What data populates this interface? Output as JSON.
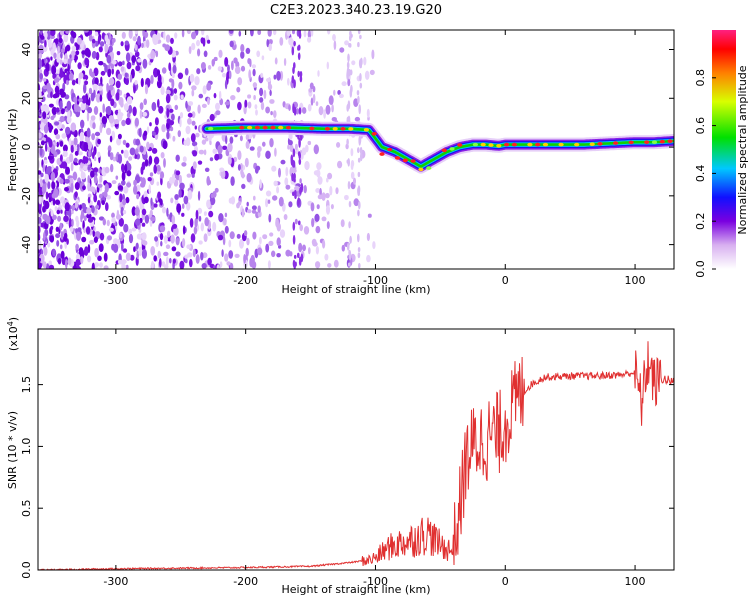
{
  "title": "C2E3.2023.340.23.19.G20",
  "colors": {
    "snr_line": "#e03030",
    "axis": "#000000",
    "background": "#ffffff"
  },
  "chart_data": [
    {
      "type": "heatmap",
      "xlabel": "Height of straight line (km)",
      "ylabel": "Frequency (Hz)",
      "xlim": [
        -360,
        130
      ],
      "ylim": [
        -50,
        48
      ],
      "xticks": [
        -300,
        -200,
        -100,
        0,
        100
      ],
      "yticks": [
        -40,
        -20,
        0,
        20,
        40
      ],
      "colorbar": {
        "label": "Normalized spectral amplitude",
        "range": [
          0.0,
          1.0
        ],
        "ticks": [
          "0.0",
          "0.2",
          "0.4",
          "0.6",
          "0.8"
        ],
        "tick_values": [
          0.0,
          0.2,
          0.4,
          0.6,
          0.8
        ]
      },
      "ridge_track": {
        "x": [
          -230,
          -200,
          -170,
          -140,
          -120,
          -105,
          -95,
          -85,
          -75,
          -65,
          -55,
          -45,
          -35,
          -25,
          -15,
          -5,
          0,
          20,
          40,
          60,
          80,
          100,
          115,
          130
        ],
        "y": [
          7.5,
          8,
          8,
          7.5,
          7.5,
          7,
          0,
          -2,
          -5,
          -8,
          -5,
          -2,
          0,
          1,
          1,
          0.5,
          1,
          1,
          1,
          1,
          1.5,
          2,
          2,
          2.5
        ]
      }
    },
    {
      "type": "line",
      "xlabel": "Height of straight line (km)",
      "ylabel": "SNR (10 * v/v)",
      "y_multiplier": "(x10",
      "y_multiplier_exp": "4",
      "y_multiplier_close": ")",
      "xlim": [
        -360,
        130
      ],
      "ylim": [
        0,
        1.95
      ],
      "xticks": [
        -300,
        -200,
        -100,
        0,
        100
      ],
      "yticks": [
        "0.0",
        "0.5",
        "1.0",
        "1.5"
      ],
      "ytick_values": [
        0.0,
        0.5,
        1.0,
        1.5
      ],
      "x": [
        -360,
        -300,
        -250,
        -200,
        -150,
        -120,
        -105,
        -100,
        -90,
        -80,
        -70,
        -60,
        -50,
        -40,
        -35,
        -30,
        -25,
        -20,
        -15,
        -10,
        -5,
        0,
        5,
        10,
        20,
        30,
        50,
        70,
        90,
        100,
        105,
        110,
        115,
        120,
        130
      ],
      "y": [
        0.0,
        0.01,
        0.015,
        0.02,
        0.03,
        0.06,
        0.08,
        0.1,
        0.18,
        0.22,
        0.25,
        0.3,
        0.2,
        0.15,
        0.5,
        0.9,
        1.0,
        1.05,
        1.05,
        1.1,
        1.1,
        1.2,
        1.3,
        1.4,
        1.5,
        1.56,
        1.57,
        1.57,
        1.58,
        1.6,
        1.35,
        1.7,
        1.5,
        1.55,
        1.52
      ]
    }
  ]
}
